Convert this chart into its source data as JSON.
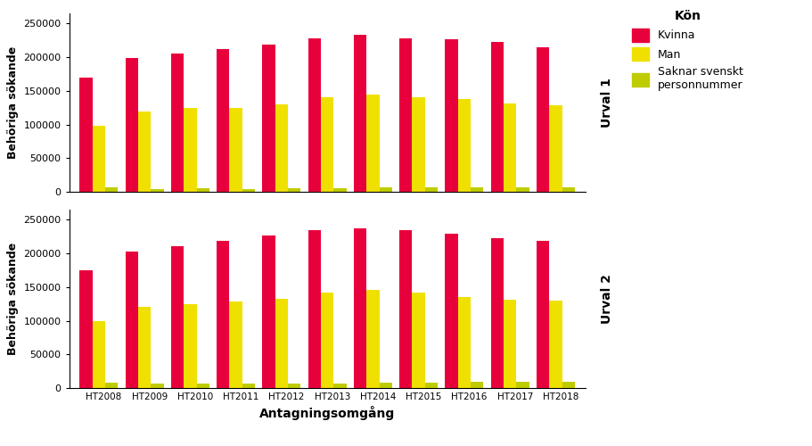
{
  "years": [
    "HT2008",
    "HT2009",
    "HT2010",
    "HT2011",
    "HT2012",
    "HT2013",
    "HT2014",
    "HT2015",
    "HT2016",
    "HT2017",
    "HT2018"
  ],
  "urval1": {
    "kvinna": [
      170000,
      199000,
      205000,
      212000,
      219000,
      228000,
      233000,
      228000,
      227000,
      222000,
      215000
    ],
    "man": [
      98000,
      119000,
      124000,
      125000,
      130000,
      140000,
      145000,
      140000,
      138000,
      131000,
      129000
    ],
    "saknar": [
      6000,
      4000,
      5000,
      4000,
      5000,
      5000,
      6000,
      6000,
      6000,
      6000,
      7000
    ]
  },
  "urval2": {
    "kvinna": [
      175000,
      203000,
      211000,
      219000,
      227000,
      234000,
      237000,
      235000,
      229000,
      223000,
      219000
    ],
    "man": [
      99000,
      120000,
      125000,
      128000,
      133000,
      142000,
      146000,
      142000,
      135000,
      131000,
      130000
    ],
    "saknar": [
      8000,
      6000,
      7000,
      6000,
      7000,
      7000,
      8000,
      8000,
      9000,
      9000,
      9000
    ]
  },
  "colors": {
    "kvinna": "#E8003C",
    "man": "#F0E000",
    "saknar": "#BFCC00"
  },
  "ylabel": "Behöriga sökande",
  "xlabel": "Antagningsomgång",
  "legend_title": "Kön",
  "legend_labels": [
    "Kvinna",
    "Man",
    "Saknar svenskt\npersonnummer"
  ],
  "urval1_label": "Urval 1",
  "urval2_label": "Urval 2",
  "ylim": [
    0,
    265000
  ],
  "yticks": [
    0,
    50000,
    100000,
    150000,
    200000,
    250000
  ],
  "background_color": "#ffffff"
}
